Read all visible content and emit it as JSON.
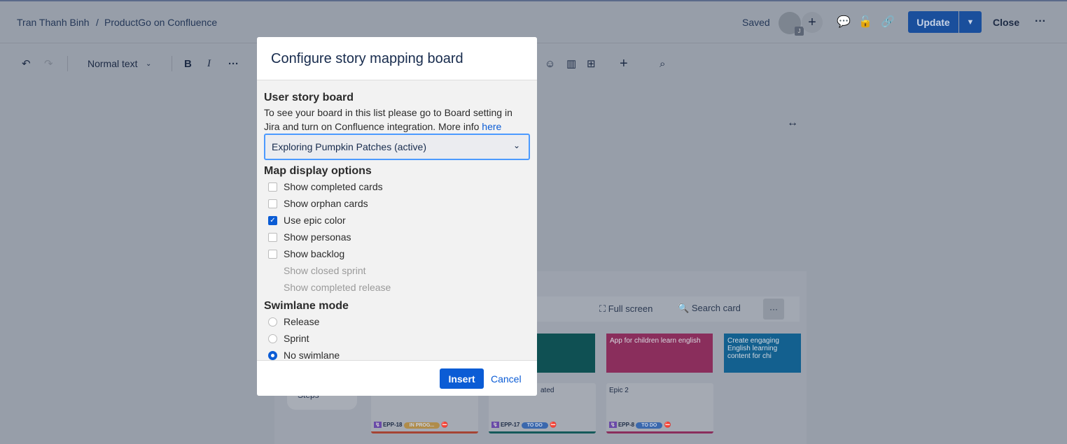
{
  "header": {
    "breadcrumb": [
      "Tran Thanh Binh",
      "ProductGo on Confluence"
    ],
    "separator": "/",
    "status": "Saved",
    "avatar_badge": "J",
    "update_label": "Update",
    "close_label": "Close"
  },
  "toolbar": {
    "text_style": "Normal text"
  },
  "board": {
    "full_screen": "Full screen",
    "search_card": "Search card",
    "steps_label": "Steps",
    "epics": [
      {
        "text": "",
        "color": "#0f5053"
      },
      {
        "text": "App for children learn english",
        "color": "#8a2e5c"
      },
      {
        "text": "Create engaging English learning content for chi",
        "color": "#13608f"
      }
    ],
    "stories": [
      {
        "title": "",
        "key": "EPP-18",
        "status": "IN PROG...",
        "status_color": "#b08c4a",
        "bar": "#a54433"
      },
      {
        "title": "ated",
        "key": "EPP-17",
        "status": "TO DO",
        "status_color": "#3a68ad",
        "bar": "#155a5a"
      },
      {
        "title": "Epic 2",
        "key": "EPP-8",
        "status": "TO DO",
        "status_color": "#3a68ad",
        "bar": "#8a2e5c"
      }
    ]
  },
  "modal": {
    "title": "Configure story mapping board",
    "board_section": "User story board",
    "help_text": "To see your board in this list please go to Board setting in Jira and turn on Confluence integration. More info ",
    "help_link": "here",
    "selected_board": "Exploring Pumpkin Patches (active)",
    "display_section": "Map display options",
    "options": [
      {
        "label": "Show completed cards",
        "checked": false
      },
      {
        "label": "Show orphan cards",
        "checked": false
      },
      {
        "label": "Use epic color",
        "checked": true
      },
      {
        "label": "Show personas",
        "checked": false
      },
      {
        "label": "Show backlog",
        "checked": false
      }
    ],
    "disabled_options": [
      "Show closed sprint",
      "Show completed release"
    ],
    "swimlane_section": "Swimlane mode",
    "swimlanes": [
      {
        "label": "Release",
        "selected": false
      },
      {
        "label": "Sprint",
        "selected": false
      },
      {
        "label": "No swimlane",
        "selected": true
      }
    ],
    "insert_label": "Insert",
    "cancel_label": "Cancel"
  }
}
